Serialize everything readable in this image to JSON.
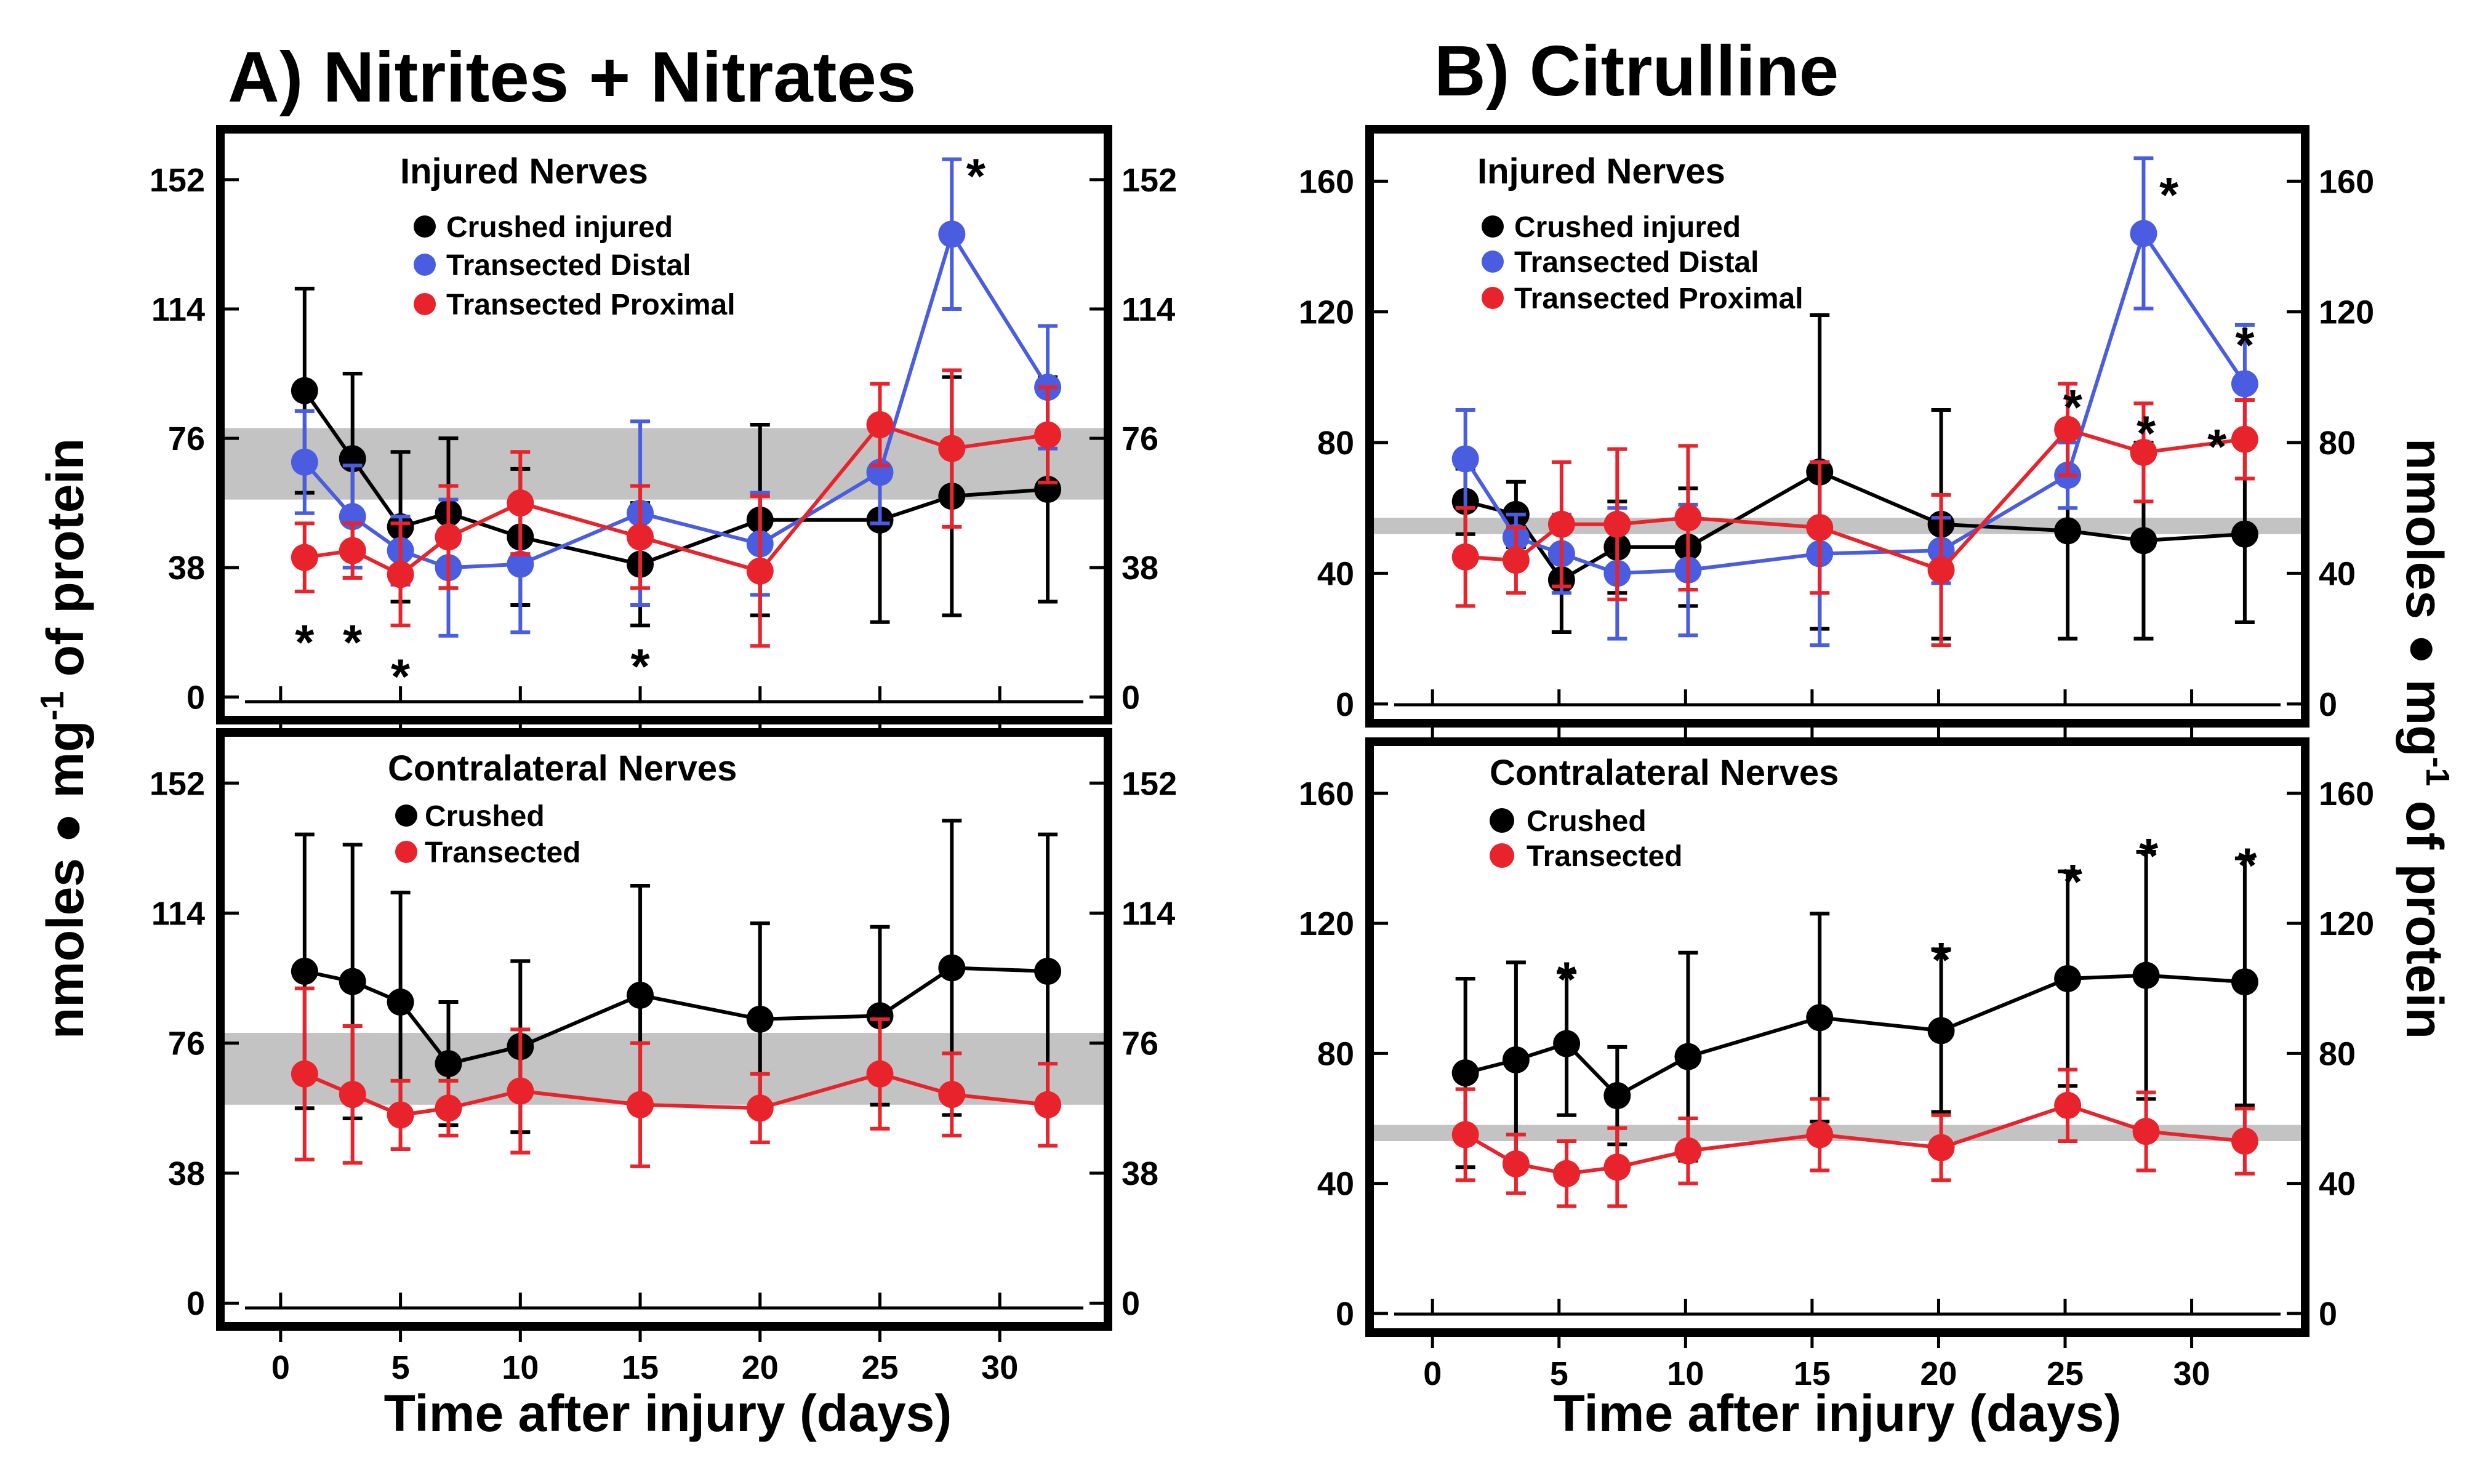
{
  "figure": {
    "ylabel": "nmoles ● mg-1 of protein",
    "ylabel_main": "nmoles ● mg",
    "ylabel_sup": "-1",
    "ylabel_tail": " of protein",
    "xlabel": "Time after injury (days)"
  },
  "colors": {
    "black": "#000000",
    "blue": "#4a5ce0",
    "red": "#e8232b",
    "band": "#c3c3c3"
  },
  "chart_data": [
    {
      "id": "A_injured",
      "type": "line",
      "title": "A) Nitrites + Nitrates",
      "legend_title": "Injured Nerves",
      "xlabel": "Time after injury (days)",
      "ylabel": "nmoles ● mg-1 of protein",
      "xlim": [
        -2,
        34
      ],
      "ylim": [
        -5,
        165
      ],
      "x_ticks": [
        0,
        5,
        10,
        15,
        20,
        25,
        30
      ],
      "y_ticks": [
        0,
        38,
        76,
        114,
        152
      ],
      "y_tick_labels": [
        "0",
        "38",
        "76",
        "114",
        "152"
      ],
      "band": [
        58,
        79
      ],
      "series": [
        {
          "name": "Crushed injured",
          "color": "black",
          "x": [
            1,
            3,
            5,
            7,
            10,
            15,
            20,
            25,
            28,
            32
          ],
          "y": [
            90,
            70,
            50,
            54,
            47,
            39,
            52,
            52,
            59,
            61
          ],
          "err_hi": [
            30,
            25,
            22,
            22,
            20,
            18,
            28,
            30,
            35,
            33
          ],
          "err_lo": [
            30,
            25,
            22,
            22,
            20,
            18,
            28,
            30,
            35,
            33
          ]
        },
        {
          "name": "Transected Distal",
          "color": "blue",
          "x": [
            1,
            3,
            5,
            7,
            10,
            15,
            20,
            25,
            28,
            32
          ],
          "y": [
            69,
            53,
            43,
            38,
            39,
            54,
            45,
            66,
            136,
            91
          ],
          "err_hi": [
            15,
            15,
            10,
            20,
            20,
            27,
            15,
            15,
            22,
            18
          ],
          "err_lo": [
            15,
            15,
            10,
            20,
            20,
            27,
            15,
            15,
            22,
            18
          ]
        },
        {
          "name": "Transected Proximal",
          "color": "red",
          "x": [
            1,
            3,
            5,
            7,
            10,
            15,
            20,
            25,
            28,
            32
          ],
          "y": [
            41,
            43,
            36,
            47,
            57,
            47,
            37,
            80,
            73,
            77
          ],
          "err_hi": [
            10,
            8,
            15,
            15,
            15,
            15,
            22,
            12,
            23,
            14
          ],
          "err_lo": [
            10,
            8,
            15,
            15,
            15,
            15,
            22,
            12,
            23,
            14
          ]
        }
      ],
      "stars": [
        {
          "x": 1,
          "y": 21,
          "label": "*"
        },
        {
          "x": 3,
          "y": 21,
          "label": "*"
        },
        {
          "x": 5,
          "y": 11,
          "label": "*"
        },
        {
          "x": 15,
          "y": 14,
          "label": "*"
        },
        {
          "x": 29,
          "y": 158,
          "label": "*"
        }
      ]
    },
    {
      "id": "A_contra",
      "type": "line",
      "title": "",
      "legend_title": "Contralateral Nerves",
      "xlabel": "Time after injury (days)",
      "ylabel": "nmoles ● mg-1 of protein",
      "xlim": [
        -2,
        34
      ],
      "ylim": [
        -5,
        165
      ],
      "x_ticks": [
        0,
        5,
        10,
        15,
        20,
        25,
        30
      ],
      "y_ticks": [
        0,
        38,
        76,
        114,
        152
      ],
      "y_tick_labels": [
        "0",
        "38",
        "76",
        "114",
        "152"
      ],
      "band": [
        58,
        79
      ],
      "series": [
        {
          "name": "Crushed",
          "color": "black",
          "x": [
            1,
            3,
            5,
            7,
            10,
            15,
            20,
            25,
            28,
            32
          ],
          "y": [
            97,
            94,
            88,
            70,
            75,
            90,
            83,
            84,
            98,
            97
          ],
          "err_hi": [
            40,
            40,
            32,
            18,
            25,
            32,
            28,
            26,
            43,
            40
          ],
          "err_lo": [
            40,
            40,
            32,
            18,
            25,
            32,
            28,
            26,
            43,
            40
          ]
        },
        {
          "name": "Transected",
          "color": "red",
          "x": [
            1,
            3,
            5,
            7,
            10,
            15,
            20,
            25,
            28,
            32
          ],
          "y": [
            67,
            61,
            55,
            57,
            62,
            58,
            57,
            67,
            61,
            58
          ],
          "err_hi": [
            25,
            20,
            10,
            8,
            18,
            18,
            10,
            16,
            12,
            12
          ],
          "err_lo": [
            25,
            20,
            10,
            8,
            18,
            18,
            10,
            16,
            12,
            12
          ]
        }
      ],
      "stars": []
    },
    {
      "id": "B_injured",
      "type": "line",
      "title": "B) Citrulline",
      "legend_title": "Injured Nerves",
      "xlabel": "Time after injury (days)",
      "ylabel": "nmoles ● mg-1 of protein",
      "xlim": [
        -2,
        34
      ],
      "ylim": [
        -4,
        174
      ],
      "x_ticks": [
        0,
        5,
        10,
        15,
        20,
        25,
        30
      ],
      "y_ticks": [
        0,
        40,
        80,
        120,
        160
      ],
      "y_tick_labels": [
        "0",
        "40",
        "80",
        "120",
        "160"
      ],
      "band": [
        52,
        57
      ],
      "series": [
        {
          "name": "Crushed injured",
          "color": "black",
          "x": [
            1.3,
            3.3,
            5.1,
            7.3,
            10.1,
            15.3,
            20.1,
            25.1,
            28.1,
            32.1
          ],
          "y": [
            62,
            58,
            38,
            48,
            48,
            71,
            55,
            53,
            50,
            52
          ],
          "err_hi": [
            10,
            10,
            16,
            14,
            18,
            48,
            35,
            33,
            30,
            27
          ],
          "err_lo": [
            10,
            10,
            16,
            14,
            18,
            48,
            35,
            33,
            30,
            27
          ]
        },
        {
          "name": "Transected Distal",
          "color": "blue",
          "x": [
            1.3,
            3.3,
            5.1,
            7.3,
            10.1,
            15.3,
            20.1,
            25.1,
            28.1,
            32.1
          ],
          "y": [
            75,
            51,
            46,
            40,
            41,
            46,
            47,
            70,
            144,
            98
          ],
          "err_hi": [
            15,
            7,
            12,
            20,
            20,
            28,
            10,
            10,
            23,
            18
          ],
          "err_lo": [
            15,
            7,
            12,
            20,
            20,
            28,
            10,
            10,
            23,
            18
          ]
        },
        {
          "name": "Transected Proximal",
          "color": "red",
          "x": [
            1.3,
            3.3,
            5.1,
            7.3,
            10.1,
            15.3,
            20.1,
            25.1,
            28.1,
            32.1
          ],
          "y": [
            45,
            44,
            55,
            55,
            57,
            54,
            41,
            84,
            77,
            81
          ],
          "err_hi": [
            15,
            10,
            19,
            23,
            22,
            20,
            23,
            14,
            15,
            12
          ],
          "err_lo": [
            15,
            10,
            19,
            23,
            22,
            20,
            23,
            14,
            15,
            12
          ]
        }
      ],
      "stars": [
        {
          "x": 25.3,
          "y": 96,
          "label": "*"
        },
        {
          "x": 28.2,
          "y": 88,
          "label": "*"
        },
        {
          "x": 29.1,
          "y": 161,
          "label": "*"
        },
        {
          "x": 31.0,
          "y": 84,
          "label": "*"
        },
        {
          "x": 32.1,
          "y": 115,
          "label": "*"
        }
      ]
    },
    {
      "id": "B_contra",
      "type": "line",
      "title": "",
      "legend_title": "Contralateral Nerves",
      "xlabel": "Time after injury (days)",
      "ylabel": "nmoles ● mg-1 of protein",
      "xlim": [
        -2,
        34
      ],
      "ylim": [
        -4,
        174
      ],
      "x_ticks": [
        0,
        5,
        10,
        15,
        20,
        25,
        30
      ],
      "y_ticks": [
        0,
        40,
        80,
        120,
        160
      ],
      "y_tick_labels": [
        "0",
        "40",
        "80",
        "120",
        "160"
      ],
      "band": [
        53,
        58
      ],
      "series": [
        {
          "name": "Crushed",
          "color": "black",
          "x": [
            1.3,
            3.3,
            5.3,
            7.3,
            10.1,
            15.3,
            20.1,
            25.1,
            28.2,
            32.1
          ],
          "y": [
            74,
            78,
            83,
            67,
            79,
            91,
            87,
            103,
            104,
            102
          ],
          "err_hi": [
            29,
            30,
            22,
            15,
            32,
            32,
            25,
            33,
            38,
            38
          ],
          "err_lo": [
            29,
            30,
            22,
            15,
            32,
            32,
            25,
            33,
            38,
            38
          ]
        },
        {
          "name": "Transected",
          "color": "red",
          "x": [
            1.3,
            3.3,
            5.3,
            7.3,
            10.1,
            15.3,
            20.1,
            25.1,
            28.2,
            32.1
          ],
          "y": [
            55,
            46,
            43,
            45,
            50,
            55,
            51,
            64,
            56,
            53
          ],
          "err_hi": [
            14,
            9,
            10,
            12,
            10,
            11,
            10,
            11,
            12,
            10
          ],
          "err_lo": [
            14,
            9,
            10,
            12,
            10,
            11,
            10,
            11,
            12,
            10
          ]
        }
      ],
      "stars": [
        {
          "x": 5.3,
          "y": 108,
          "label": "*"
        },
        {
          "x": 20.1,
          "y": 114,
          "label": "*"
        },
        {
          "x": 25.3,
          "y": 138,
          "label": "*"
        },
        {
          "x": 28.3,
          "y": 146,
          "label": "*"
        },
        {
          "x": 32.2,
          "y": 143,
          "label": "*"
        }
      ]
    }
  ]
}
